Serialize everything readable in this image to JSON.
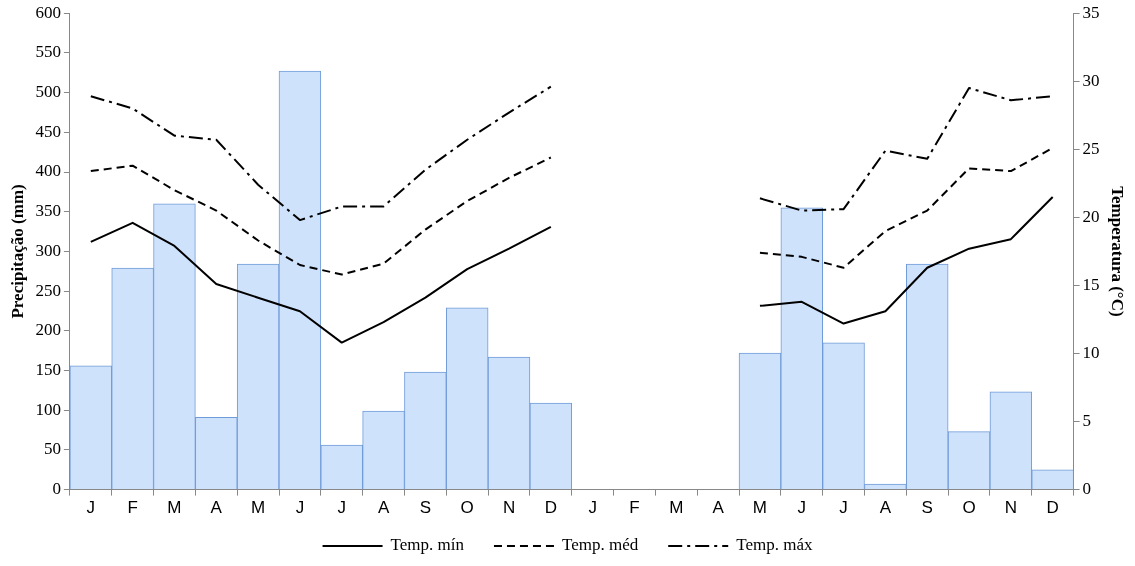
{
  "chart_data": {
    "type": "bar",
    "xlabel": null,
    "ylabel": "Precipitação (mm)",
    "y2label": "Temperatura (°C)",
    "categories": [
      "J",
      "F",
      "M",
      "A",
      "M",
      "J",
      "J",
      "A",
      "S",
      "O",
      "N",
      "D",
      "J",
      "F",
      "M",
      "A",
      "M",
      "J",
      "J",
      "A",
      "S",
      "O",
      "N",
      "D"
    ],
    "series": [
      {
        "color": "#cfe2fb",
        "values": [
          156,
          279,
          360,
          91,
          284,
          527,
          56,
          99,
          148,
          229,
          167,
          109,
          null,
          null,
          null,
          null,
          172,
          355,
          185,
          7,
          284,
          73,
          123,
          25
        ]
      },
      {
        "type": "line",
        "name": "Temp. mín",
        "color": "#000000",
        "line_style": "solid",
        "axis": "y2",
        "values": [
          18.2,
          19.6,
          17.9,
          15.1,
          14.1,
          13.1,
          10.8,
          12.3,
          14.1,
          16.2,
          17.7,
          19.3,
          null,
          null,
          null,
          null,
          13.5,
          13.8,
          12.2,
          13.1,
          16.3,
          17.7,
          18.4,
          21.5
        ]
      },
      {
        "type": "line",
        "name": "Temp. méd",
        "color": "#000000",
        "line_style": "dashed",
        "axis": "y2",
        "values": [
          23.4,
          23.8,
          22.0,
          20.5,
          18.3,
          16.5,
          15.8,
          16.6,
          19.1,
          21.2,
          22.9,
          24.4,
          null,
          null,
          null,
          null,
          17.4,
          17.1,
          16.3,
          19.0,
          20.5,
          23.6,
          23.4,
          25.1
        ]
      },
      {
        "type": "line",
        "name": "Temp. máx",
        "color": "#000000",
        "line_style": "dashdot",
        "axis": "y2",
        "values": [
          28.9,
          28.0,
          26.0,
          25.7,
          22.4,
          19.8,
          20.8,
          20.8,
          23.5,
          25.7,
          27.7,
          29.6,
          null,
          null,
          null,
          null,
          21.4,
          20.5,
          20.6,
          24.9,
          24.3,
          29.5,
          28.6,
          28.9
        ]
      }
    ],
    "ylim": [
      0,
      600
    ],
    "yticks": [
      0,
      50,
      100,
      150,
      200,
      250,
      300,
      350,
      400,
      450,
      500,
      550,
      600
    ],
    "y2lim": [
      0,
      35
    ],
    "y2ticks": [
      0,
      5,
      10,
      15,
      20,
      25,
      30,
      35
    ],
    "grid": false,
    "legend": "bottom",
    "marker": "none"
  }
}
